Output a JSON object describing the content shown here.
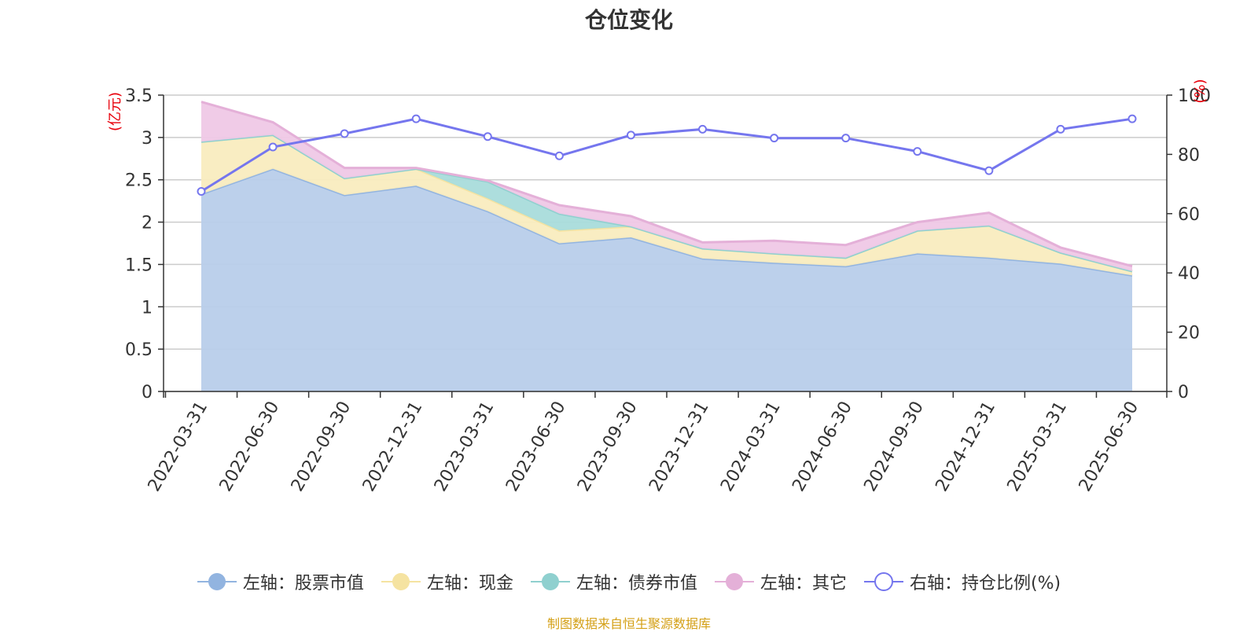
{
  "title": "仓位变化",
  "source_note": "制图数据来自恒生聚源数据库",
  "chart_data": {
    "type": "area",
    "title": "仓位变化",
    "categories": [
      "2022-03-31",
      "2022-06-30",
      "2022-09-30",
      "2022-12-31",
      "2023-03-31",
      "2023-06-30",
      "2023-09-30",
      "2023-12-31",
      "2024-03-31",
      "2024-06-30",
      "2024-09-30",
      "2024-12-31",
      "2025-03-31",
      "2025-06-30"
    ],
    "left_axis": {
      "unit": "(亿元)",
      "ylim": [
        0,
        3.5
      ],
      "ticks": [
        "0",
        "0.5",
        "1",
        "1.5",
        "2",
        "2.5",
        "3",
        "3.5"
      ],
      "tick_values": [
        0,
        0.5,
        1,
        1.5,
        2,
        2.5,
        3,
        3.5
      ]
    },
    "right_axis": {
      "unit": "(%)",
      "ylim": [
        0,
        100
      ],
      "ticks": [
        "0",
        "20",
        "40",
        "60",
        "80",
        "100"
      ],
      "tick_values": [
        0,
        20,
        40,
        60,
        80,
        100
      ]
    },
    "grid": true,
    "legend_position": "bottom",
    "series": [
      {
        "name": "左轴：股票市值",
        "type": "area",
        "axis": "left",
        "color": "#92b4e0",
        "fill": "#b8cdea",
        "values": [
          2.33,
          2.63,
          2.32,
          2.43,
          2.13,
          1.75,
          1.82,
          1.57,
          1.52,
          1.48,
          1.63,
          1.58,
          1.51,
          1.37
        ]
      },
      {
        "name": "左轴：现金",
        "type": "area",
        "axis": "left",
        "color": "#f5e3a1",
        "fill": "#f9ecbf",
        "values": [
          0.62,
          0.4,
          0.2,
          0.2,
          0.15,
          0.15,
          0.13,
          0.12,
          0.11,
          0.1,
          0.27,
          0.38,
          0.13,
          0.05
        ]
      },
      {
        "name": "左轴：债券市值",
        "type": "area",
        "axis": "left",
        "color": "#8fd0cf",
        "fill": "#a9dcdb",
        "values": [
          0,
          0,
          0,
          0,
          0.2,
          0.2,
          0,
          0,
          0,
          0,
          0,
          0,
          0,
          0
        ]
      },
      {
        "name": "左轴：其它",
        "type": "area",
        "axis": "left",
        "color": "#e4b0d8",
        "fill": "#efc8e6",
        "values": [
          0.47,
          0.15,
          0.12,
          0.01,
          0.01,
          0.1,
          0.12,
          0.07,
          0.15,
          0.15,
          0.1,
          0.15,
          0.06,
          0.06
        ]
      },
      {
        "name": "右轴：持仓比例(%)",
        "type": "line",
        "axis": "right",
        "color": "#7576ee",
        "values": [
          67.5,
          82.5,
          87.0,
          92.0,
          86.0,
          79.5,
          86.5,
          88.5,
          85.5,
          85.5,
          81.0,
          74.5,
          88.5,
          92.0
        ]
      }
    ]
  }
}
